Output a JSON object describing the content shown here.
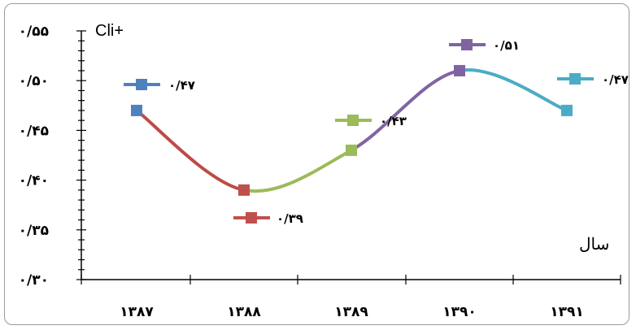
{
  "chart_data": {
    "type": "line",
    "categories": [
      "۱۳۸۷",
      "۱۳۸۸",
      "۱۳۸۹",
      "۱۳۹۰",
      "۱۳۹۱"
    ],
    "values": [
      0.47,
      0.39,
      0.43,
      0.51,
      0.47
    ],
    "data_labels": [
      "۰/۴۷",
      "۰/۳۹",
      "۰/۴۳",
      "۰/۵۱",
      "۰/۴۷"
    ],
    "ylim": [
      0.3,
      0.55
    ],
    "y_ticks": [
      {
        "value": 0.3,
        "label": "۰/۳۰"
      },
      {
        "value": 0.35,
        "label": "۰/۳۵"
      },
      {
        "value": 0.4,
        "label": "۰/۴۰"
      },
      {
        "value": 0.45,
        "label": "۰/۴۵"
      },
      {
        "value": 0.5,
        "label": "۰/۵۰"
      },
      {
        "value": 0.55,
        "label": "۰/۵۵"
      }
    ],
    "ylabel": "Cli+",
    "xlabel": "سال",
    "segment_colors": [
      "#BE4B48",
      "#9BBB59",
      "#8064A2",
      "#4BACC6"
    ],
    "marker_colors": [
      "#4F81BD",
      "#C0504D",
      "#9BBB59",
      "#8064A2",
      "#4BACC6"
    ],
    "grid": false,
    "smooth": true
  }
}
